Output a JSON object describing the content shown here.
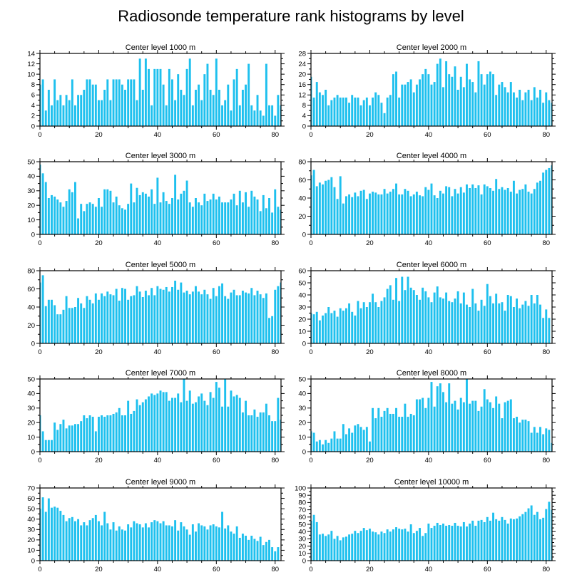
{
  "figure": {
    "title": "Radiosonde temperature rank histograms by level",
    "bar_color": "#1ec0ee",
    "axis_color": "#000000"
  },
  "chart_data": [
    {
      "type": "bar",
      "title": "Center level 1000 m",
      "ylim": [
        0,
        14
      ],
      "yticks": [
        0,
        2,
        4,
        6,
        8,
        10,
        12,
        14
      ],
      "xlim": [
        0,
        82
      ],
      "xticks": [
        0,
        20,
        40,
        60,
        80
      ],
      "values": [
        8,
        9,
        3,
        7,
        4,
        9,
        5,
        6,
        4,
        6,
        5,
        9,
        4,
        6,
        6,
        7,
        9,
        9,
        8,
        8,
        5,
        5,
        7,
        9,
        5,
        9,
        9,
        9,
        8,
        7,
        9,
        9,
        9,
        5,
        13,
        7,
        13,
        11,
        4,
        11,
        11,
        11,
        8,
        4,
        11,
        9,
        5,
        10,
        7,
        6,
        11,
        13,
        4,
        7,
        8,
        5,
        10,
        12,
        7,
        6,
        13,
        7,
        4,
        5,
        8,
        3,
        9,
        11,
        4,
        7,
        8,
        12,
        4,
        3,
        6,
        3,
        2,
        12,
        4,
        4,
        2,
        6,
        4
      ]
    },
    {
      "type": "bar",
      "title": "Center level 2000 m",
      "ylim": [
        0,
        28
      ],
      "yticks": [
        0,
        4,
        8,
        12,
        16,
        20,
        24,
        28
      ],
      "xlim": [
        0,
        82
      ],
      "xticks": [
        0,
        20,
        40,
        60,
        80
      ],
      "values": [
        19,
        11,
        17,
        13,
        12,
        14,
        8,
        10,
        11,
        12,
        11,
        11,
        11,
        9,
        12,
        11,
        11,
        8,
        10,
        11,
        8,
        11,
        13,
        12,
        9,
        5,
        11,
        12,
        20,
        21,
        11,
        16,
        16,
        17,
        18,
        13,
        16,
        18,
        20,
        22,
        20,
        16,
        17,
        24,
        26,
        15,
        25,
        20,
        19,
        23,
        14,
        19,
        15,
        24,
        18,
        17,
        13,
        25,
        20,
        16,
        20,
        21,
        20,
        12,
        16,
        17,
        15,
        13,
        17,
        13,
        11,
        14,
        10,
        13,
        14,
        10,
        15,
        11,
        14,
        9,
        13,
        10,
        9
      ]
    },
    {
      "type": "bar",
      "title": "Center level 3000 m",
      "ylim": [
        0,
        50
      ],
      "yticks": [
        0,
        10,
        20,
        30,
        40,
        50
      ],
      "xlim": [
        0,
        82
      ],
      "xticks": [
        0,
        20,
        40,
        60,
        80
      ],
      "values": [
        48,
        42,
        36,
        25,
        27,
        26,
        24,
        22,
        19,
        23,
        31,
        29,
        36,
        11,
        21,
        16,
        21,
        22,
        21,
        19,
        25,
        19,
        31,
        31,
        30,
        22,
        26,
        20,
        18,
        17,
        21,
        35,
        22,
        32,
        27,
        29,
        28,
        26,
        31,
        21,
        39,
        22,
        29,
        23,
        21,
        25,
        41,
        24,
        28,
        30,
        37,
        22,
        19,
        25,
        22,
        20,
        28,
        23,
        24,
        28,
        24,
        26,
        22,
        22,
        22,
        24,
        28,
        20,
        30,
        22,
        29,
        19,
        30,
        26,
        24,
        16,
        27,
        18,
        25,
        15,
        31,
        19,
        17
      ]
    },
    {
      "type": "bar",
      "title": "Center level 4000 m",
      "ylim": [
        0,
        80
      ],
      "yticks": [
        0,
        20,
        40,
        60,
        80
      ],
      "xlim": [
        0,
        82
      ],
      "xticks": [
        0,
        20,
        40,
        60,
        80
      ],
      "values": [
        65,
        71,
        53,
        57,
        55,
        59,
        60,
        63,
        52,
        39,
        64,
        34,
        42,
        44,
        41,
        46,
        42,
        48,
        49,
        39,
        45,
        47,
        46,
        44,
        44,
        50,
        45,
        47,
        50,
        56,
        44,
        44,
        50,
        48,
        42,
        44,
        47,
        43,
        42,
        52,
        49,
        56,
        43,
        40,
        48,
        45,
        53,
        52,
        42,
        50,
        45,
        52,
        46,
        55,
        51,
        55,
        51,
        54,
        44,
        55,
        53,
        51,
        48,
        61,
        50,
        52,
        49,
        51,
        47,
        59,
        45,
        49,
        50,
        55,
        47,
        45,
        50,
        57,
        59,
        68,
        71,
        73,
        76
      ]
    },
    {
      "type": "bar",
      "title": "Center level 5000 m",
      "ylim": [
        0,
        80
      ],
      "yticks": [
        0,
        20,
        40,
        60,
        80
      ],
      "xlim": [
        0,
        82
      ],
      "xticks": [
        0,
        20,
        40,
        60,
        80
      ],
      "values": [
        67,
        75,
        41,
        48,
        48,
        42,
        32,
        32,
        37,
        52,
        39,
        39,
        40,
        50,
        44,
        39,
        52,
        48,
        44,
        55,
        48,
        55,
        52,
        57,
        54,
        53,
        60,
        47,
        61,
        60,
        48,
        52,
        53,
        63,
        57,
        51,
        58,
        53,
        61,
        53,
        63,
        60,
        59,
        62,
        57,
        62,
        69,
        59,
        67,
        56,
        58,
        54,
        57,
        63,
        57,
        54,
        59,
        54,
        49,
        61,
        52,
        63,
        66,
        52,
        49,
        56,
        59,
        53,
        53,
        58,
        56,
        55,
        61,
        53,
        58,
        54,
        50,
        55,
        28,
        30,
        59,
        63,
        67
      ]
    },
    {
      "type": "bar",
      "title": "Center level 6000 m",
      "ylim": [
        0,
        60
      ],
      "yticks": [
        0,
        10,
        20,
        30,
        40,
        50,
        60
      ],
      "xlim": [
        0,
        82
      ],
      "xticks": [
        0,
        20,
        40,
        60,
        80
      ],
      "values": [
        25,
        24,
        26,
        19,
        23,
        25,
        30,
        25,
        27,
        22,
        29,
        27,
        29,
        33,
        26,
        23,
        35,
        29,
        34,
        30,
        34,
        41,
        34,
        30,
        35,
        38,
        45,
        48,
        36,
        54,
        35,
        55,
        44,
        55,
        46,
        44,
        40,
        36,
        46,
        43,
        38,
        34,
        42,
        47,
        38,
        37,
        42,
        35,
        34,
        37,
        43,
        33,
        42,
        32,
        30,
        45,
        33,
        27,
        36,
        31,
        49,
        39,
        33,
        41,
        33,
        34,
        27,
        40,
        39,
        30,
        37,
        29,
        32,
        35,
        31,
        40,
        33,
        40,
        32,
        21,
        28,
        21
      ]
    },
    {
      "type": "bar",
      "title": "Center level 7000 m",
      "ylim": [
        0,
        50
      ],
      "yticks": [
        0,
        10,
        20,
        30,
        40,
        50
      ],
      "xlim": [
        0,
        82
      ],
      "xticks": [
        0,
        20,
        40,
        60,
        80
      ],
      "values": [
        25,
        14,
        8,
        8,
        8,
        20,
        15,
        19,
        22,
        16,
        18,
        18,
        19,
        19,
        21,
        25,
        23,
        25,
        24,
        14,
        24,
        25,
        24,
        25,
        25,
        26,
        27,
        30,
        25,
        25,
        35,
        26,
        28,
        36,
        32,
        34,
        36,
        38,
        40,
        39,
        40,
        42,
        41,
        41,
        35,
        37,
        37,
        40,
        34,
        50,
        35,
        42,
        33,
        34,
        38,
        40,
        35,
        32,
        41,
        37,
        48,
        44,
        31,
        50,
        31,
        42,
        38,
        39,
        37,
        27,
        35,
        25,
        25,
        29,
        24,
        27,
        27,
        33,
        25,
        21,
        21,
        37,
        22,
        20
      ]
    },
    {
      "type": "bar",
      "title": "Center level 8000 m",
      "ylim": [
        0,
        50
      ],
      "yticks": [
        0,
        10,
        20,
        30,
        40,
        50
      ],
      "xlim": [
        0,
        82
      ],
      "xticks": [
        0,
        20,
        40,
        60,
        80
      ],
      "values": [
        14,
        13,
        7,
        8,
        5,
        8,
        6,
        9,
        14,
        9,
        9,
        19,
        12,
        16,
        13,
        18,
        19,
        17,
        15,
        17,
        7,
        30,
        23,
        30,
        24,
        28,
        30,
        26,
        26,
        30,
        24,
        24,
        33,
        24,
        26,
        25,
        36,
        36,
        37,
        30,
        37,
        48,
        31,
        45,
        47,
        41,
        34,
        47,
        33,
        35,
        29,
        37,
        34,
        50,
        33,
        35,
        35,
        28,
        31,
        43,
        36,
        34,
        30,
        38,
        33,
        23,
        34,
        35,
        36,
        23,
        24,
        20,
        22,
        22,
        21,
        13,
        17,
        13,
        17,
        12,
        16,
        15,
        6
      ]
    },
    {
      "type": "bar",
      "title": "Center level 9000 m",
      "ylim": [
        0,
        70
      ],
      "yticks": [
        0,
        10,
        20,
        30,
        40,
        50,
        60,
        70
      ],
      "xlim": [
        0,
        82
      ],
      "xticks": [
        0,
        20,
        40,
        60,
        80
      ],
      "values": [
        50,
        61,
        47,
        60,
        51,
        52,
        51,
        48,
        44,
        38,
        41,
        42,
        38,
        40,
        34,
        37,
        34,
        39,
        41,
        44,
        38,
        34,
        47,
        36,
        30,
        37,
        29,
        33,
        30,
        29,
        35,
        32,
        38,
        36,
        35,
        32,
        36,
        32,
        37,
        39,
        38,
        36,
        38,
        34,
        34,
        33,
        39,
        29,
        37,
        33,
        30,
        25,
        35,
        28,
        36,
        34,
        33,
        30,
        34,
        35,
        33,
        32,
        47,
        31,
        34,
        28,
        26,
        33,
        22,
        26,
        24,
        20,
        24,
        21,
        19,
        23,
        15,
        18,
        20,
        13,
        9,
        13
      ]
    },
    {
      "type": "bar",
      "title": "Center level 10000 m",
      "ylim": [
        0,
        100
      ],
      "yticks": [
        0,
        10,
        20,
        30,
        40,
        50,
        60,
        70,
        80,
        90,
        100
      ],
      "xlim": [
        0,
        82
      ],
      "xticks": [
        0,
        20,
        40,
        60,
        80
      ],
      "values": [
        55,
        63,
        53,
        36,
        37,
        34,
        36,
        41,
        30,
        34,
        28,
        32,
        33,
        36,
        37,
        41,
        38,
        41,
        45,
        42,
        44,
        40,
        39,
        36,
        40,
        38,
        43,
        40,
        43,
        46,
        44,
        43,
        44,
        40,
        50,
        38,
        41,
        45,
        34,
        38,
        51,
        45,
        48,
        52,
        49,
        51,
        48,
        49,
        48,
        52,
        48,
        47,
        53,
        47,
        51,
        55,
        48,
        55,
        56,
        53,
        60,
        55,
        66,
        57,
        55,
        60,
        56,
        51,
        58,
        57,
        58,
        61,
        64,
        67,
        72,
        76,
        63,
        67,
        57,
        59,
        71,
        81,
        70
      ]
    }
  ]
}
